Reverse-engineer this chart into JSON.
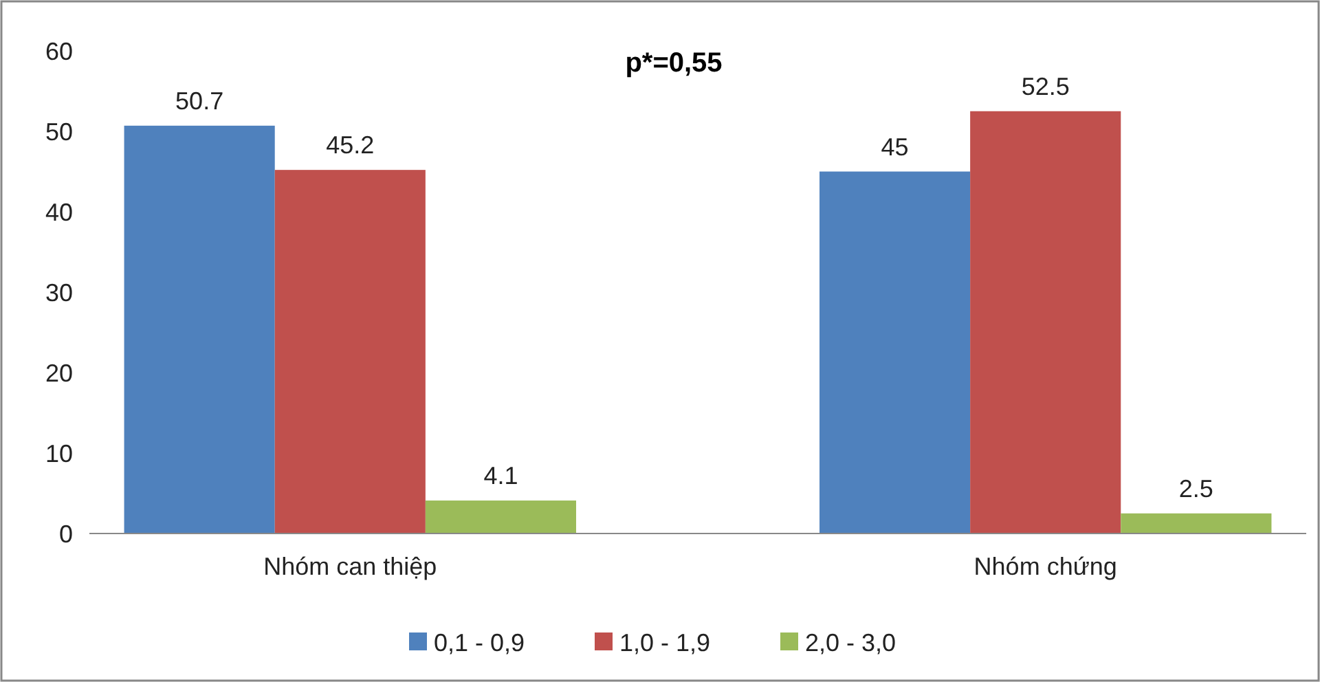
{
  "chart_data": {
    "type": "bar",
    "title": "p*=0,55",
    "categories": [
      "Nhóm can thiệp",
      "Nhóm chứng"
    ],
    "series": [
      {
        "name": "0,1 - 0,9",
        "color": "#4f81bd",
        "values": [
          50.7,
          45
        ]
      },
      {
        "name": "1,0 - 1,9",
        "color": "#c0504d",
        "values": [
          45.2,
          52.5
        ]
      },
      {
        "name": "2,0 - 3,0",
        "color": "#9bbb59",
        "values": [
          4.1,
          2.5
        ]
      }
    ],
    "ylim": [
      0,
      60
    ],
    "yticks": [
      0,
      10,
      20,
      30,
      40,
      50,
      60
    ],
    "grid": false,
    "legend": "bottom",
    "data_labels": true
  }
}
